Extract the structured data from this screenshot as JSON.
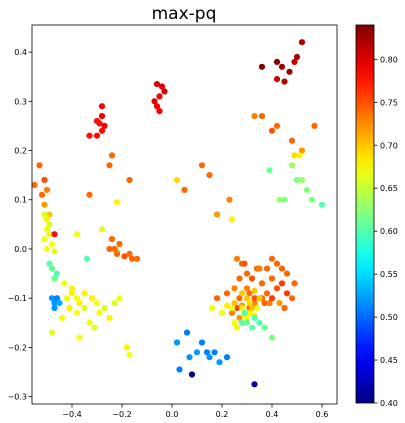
{
  "chart_data": {
    "type": "scatter",
    "title": "max-pq",
    "xlabel": "",
    "ylabel": "",
    "xlim": [
      -0.56,
      0.66
    ],
    "ylim": [
      -0.315,
      0.455
    ],
    "xticks": [
      "−0.4",
      "−0.2",
      "0.0",
      "0.2",
      "0.4",
      "0.6"
    ],
    "xtick_values": [
      -0.4,
      -0.2,
      0.0,
      0.2,
      0.4,
      0.6
    ],
    "yticks": [
      "−0.3",
      "−0.2",
      "−0.1",
      "0.0",
      "0.1",
      "0.2",
      "0.3",
      "0.4"
    ],
    "ytick_values": [
      -0.3,
      -0.2,
      -0.1,
      0.0,
      0.1,
      0.2,
      0.3,
      0.4
    ],
    "colorbar": {
      "colormap": "jet",
      "range": [
        0.4,
        0.84
      ],
      "ticks": [
        "0.40",
        "0.45",
        "0.50",
        "0.55",
        "0.60",
        "0.65",
        "0.70",
        "0.75",
        "0.80"
      ],
      "tick_values": [
        0.4,
        0.45,
        0.5,
        0.55,
        0.6,
        0.65,
        0.7,
        0.75,
        0.8
      ]
    },
    "grid": false,
    "points": [
      [
        0.44,
        0.37,
        0.83
      ],
      [
        0.42,
        0.38,
        0.84
      ],
      [
        0.47,
        0.36,
        0.83
      ],
      [
        0.5,
        0.39,
        0.82
      ],
      [
        0.52,
        0.42,
        0.82
      ],
      [
        0.49,
        0.38,
        0.81
      ],
      [
        0.45,
        0.34,
        0.82
      ],
      [
        0.42,
        0.345,
        0.81
      ],
      [
        0.36,
        0.37,
        0.84
      ],
      [
        -0.04,
        0.33,
        0.8
      ],
      [
        -0.05,
        0.31,
        0.79
      ],
      [
        -0.03,
        0.32,
        0.8
      ],
      [
        -0.06,
        0.29,
        0.79
      ],
      [
        -0.07,
        0.3,
        0.8
      ],
      [
        -0.05,
        0.28,
        0.79
      ],
      [
        -0.06,
        0.335,
        0.8
      ],
      [
        -0.28,
        0.29,
        0.79
      ],
      [
        -0.3,
        0.26,
        0.78
      ],
      [
        -0.28,
        0.27,
        0.79
      ],
      [
        -0.29,
        0.255,
        0.78
      ],
      [
        -0.27,
        0.25,
        0.79
      ],
      [
        -0.3,
        0.23,
        0.78
      ],
      [
        -0.33,
        0.23,
        0.78
      ],
      [
        -0.28,
        0.24,
        0.78
      ],
      [
        0.33,
        0.27,
        0.73
      ],
      [
        0.36,
        0.27,
        0.74
      ],
      [
        0.4,
        0.24,
        0.75
      ],
      [
        0.42,
        0.25,
        0.74
      ],
      [
        0.57,
        0.25,
        0.74
      ],
      [
        0.48,
        0.22,
        0.74
      ],
      [
        0.52,
        0.2,
        0.72
      ],
      [
        0.49,
        0.19,
        0.69
      ],
      [
        0.51,
        0.19,
        0.68
      ],
      [
        0.48,
        0.17,
        0.63
      ],
      [
        -0.24,
        0.19,
        0.74
      ],
      [
        -0.25,
        0.17,
        0.74
      ],
      [
        -0.17,
        0.14,
        0.74
      ],
      [
        -0.33,
        0.11,
        0.74
      ],
      [
        -0.22,
        0.095,
        0.68
      ],
      [
        0.12,
        0.17,
        0.74
      ],
      [
        0.15,
        0.15,
        0.74
      ],
      [
        0.05,
        0.12,
        0.74
      ],
      [
        0.02,
        0.14,
        0.69
      ],
      [
        0.23,
        0.1,
        0.73
      ],
      [
        0.18,
        0.07,
        0.72
      ],
      [
        0.24,
        0.06,
        0.68
      ],
      [
        0.39,
        0.16,
        0.61
      ],
      [
        0.45,
        0.1,
        0.62
      ],
      [
        0.43,
        0.1,
        0.63
      ],
      [
        0.5,
        0.14,
        0.62
      ],
      [
        0.52,
        0.14,
        0.63
      ],
      [
        0.54,
        0.12,
        0.62
      ],
      [
        0.56,
        0.1,
        0.62
      ],
      [
        0.6,
        0.09,
        0.6
      ],
      [
        -0.53,
        0.17,
        0.74
      ],
      [
        -0.55,
        0.13,
        0.74
      ],
      [
        -0.51,
        0.14,
        0.75
      ],
      [
        -0.5,
        0.12,
        0.73
      ],
      [
        -0.52,
        0.11,
        0.74
      ],
      [
        -0.51,
        0.09,
        0.72
      ],
      [
        -0.49,
        0.07,
        0.7
      ],
      [
        -0.5,
        0.06,
        0.68
      ],
      [
        -0.51,
        0.07,
        0.66
      ],
      [
        -0.49,
        0.05,
        0.66
      ],
      [
        -0.5,
        0.04,
        0.67
      ],
      [
        -0.51,
        0.02,
        0.67
      ],
      [
        -0.48,
        0.01,
        0.67
      ],
      [
        -0.5,
        0.0,
        0.67
      ],
      [
        -0.47,
        -0.005,
        0.66
      ],
      [
        -0.49,
        0.03,
        0.66
      ],
      [
        -0.47,
        0.03,
        0.78
      ],
      [
        -0.38,
        0.03,
        0.67
      ],
      [
        -0.28,
        0.04,
        0.66
      ],
      [
        -0.34,
        -0.02,
        0.6
      ],
      [
        -0.22,
        -0.005,
        0.62
      ],
      [
        -0.49,
        -0.03,
        0.6
      ],
      [
        -0.48,
        -0.04,
        0.61
      ],
      [
        -0.47,
        -0.06,
        0.61
      ],
      [
        -0.46,
        -0.05,
        0.6
      ],
      [
        -0.24,
        0.02,
        0.74
      ],
      [
        -0.25,
        0.0,
        0.74
      ],
      [
        -0.23,
        0.0,
        0.74
      ],
      [
        -0.22,
        -0.01,
        0.74
      ],
      [
        -0.21,
        0.01,
        0.74
      ],
      [
        -0.19,
        -0.015,
        0.75
      ],
      [
        -0.17,
        -0.01,
        0.74
      ],
      [
        -0.16,
        -0.02,
        0.74
      ],
      [
        -0.14,
        -0.02,
        0.74
      ],
      [
        -0.48,
        -0.1,
        0.52
      ],
      [
        -0.47,
        -0.11,
        0.52
      ],
      [
        -0.46,
        -0.1,
        0.51
      ],
      [
        -0.47,
        -0.12,
        0.52
      ],
      [
        -0.45,
        -0.11,
        0.53
      ],
      [
        -0.43,
        -0.07,
        0.67
      ],
      [
        -0.4,
        -0.09,
        0.68
      ],
      [
        -0.42,
        -0.1,
        0.67
      ],
      [
        -0.38,
        -0.1,
        0.67
      ],
      [
        -0.37,
        -0.11,
        0.68
      ],
      [
        -0.35,
        -0.12,
        0.66
      ],
      [
        -0.4,
        -0.08,
        0.68
      ],
      [
        -0.35,
        -0.09,
        0.68
      ],
      [
        -0.32,
        -0.1,
        0.68
      ],
      [
        -0.3,
        -0.11,
        0.67
      ],
      [
        -0.27,
        -0.12,
        0.66
      ],
      [
        -0.25,
        -0.14,
        0.68
      ],
      [
        -0.23,
        -0.11,
        0.66
      ],
      [
        -0.21,
        -0.1,
        0.67
      ],
      [
        -0.38,
        -0.13,
        0.67
      ],
      [
        -0.31,
        -0.16,
        0.66
      ],
      [
        -0.29,
        -0.13,
        0.67
      ],
      [
        -0.33,
        -0.15,
        0.67
      ],
      [
        -0.44,
        -0.14,
        0.67
      ],
      [
        -0.41,
        -0.12,
        0.68
      ],
      [
        -0.48,
        -0.17,
        0.66
      ],
      [
        -0.37,
        -0.18,
        0.67
      ],
      [
        -0.18,
        -0.2,
        0.68
      ],
      [
        -0.17,
        -0.215,
        0.67
      ],
      [
        0.26,
        -0.02,
        0.73
      ],
      [
        0.28,
        -0.03,
        0.74
      ],
      [
        0.3,
        -0.05,
        0.74
      ],
      [
        0.32,
        -0.06,
        0.75
      ],
      [
        0.34,
        -0.04,
        0.74
      ],
      [
        0.36,
        -0.07,
        0.74
      ],
      [
        0.38,
        -0.09,
        0.74
      ],
      [
        0.4,
        -0.06,
        0.74
      ],
      [
        0.42,
        -0.08,
        0.75
      ],
      [
        0.44,
        -0.07,
        0.76
      ],
      [
        0.46,
        -0.09,
        0.76
      ],
      [
        0.48,
        -0.1,
        0.74
      ],
      [
        0.3,
        -0.08,
        0.73
      ],
      [
        0.27,
        -0.06,
        0.74
      ],
      [
        0.25,
        -0.08,
        0.73
      ],
      [
        0.22,
        -0.09,
        0.74
      ],
      [
        0.33,
        -0.11,
        0.73
      ],
      [
        0.36,
        -0.1,
        0.74
      ],
      [
        0.39,
        -0.11,
        0.73
      ],
      [
        0.43,
        -0.11,
        0.72
      ],
      [
        0.45,
        -0.12,
        0.74
      ],
      [
        0.4,
        -0.02,
        0.74
      ],
      [
        0.38,
        -0.04,
        0.74
      ],
      [
        0.31,
        -0.09,
        0.74
      ],
      [
        0.35,
        -0.04,
        0.73
      ],
      [
        0.44,
        -0.04,
        0.74
      ],
      [
        0.29,
        -0.03,
        0.75
      ],
      [
        0.27,
        -0.1,
        0.74
      ],
      [
        0.24,
        -0.13,
        0.73
      ],
      [
        0.27,
        -0.14,
        0.72
      ],
      [
        0.26,
        -0.12,
        0.76
      ],
      [
        0.31,
        -0.12,
        0.74
      ],
      [
        0.18,
        -0.1,
        0.74
      ],
      [
        0.49,
        -0.07,
        0.74
      ],
      [
        0.28,
        -0.115,
        0.72
      ],
      [
        0.33,
        -0.1,
        0.75
      ],
      [
        0.46,
        -0.05,
        0.74
      ],
      [
        0.42,
        -0.03,
        0.74
      ],
      [
        0.37,
        -0.11,
        0.74
      ],
      [
        0.4,
        -0.1,
        0.76
      ],
      [
        0.22,
        -0.115,
        0.68
      ],
      [
        0.24,
        -0.12,
        0.67
      ],
      [
        0.28,
        -0.12,
        0.68
      ],
      [
        0.3,
        -0.14,
        0.68
      ],
      [
        0.2,
        -0.13,
        0.67
      ],
      [
        0.26,
        -0.16,
        0.68
      ],
      [
        0.31,
        -0.13,
        0.68
      ],
      [
        0.34,
        -0.12,
        0.67
      ],
      [
        0.16,
        -0.12,
        0.67
      ],
      [
        0.25,
        -0.15,
        0.67
      ],
      [
        0.33,
        -0.135,
        0.68
      ],
      [
        0.29,
        -0.135,
        0.68
      ],
      [
        0.28,
        -0.15,
        0.6
      ],
      [
        0.3,
        -0.15,
        0.61
      ],
      [
        0.33,
        -0.14,
        0.6
      ],
      [
        0.35,
        -0.15,
        0.6
      ],
      [
        0.37,
        -0.16,
        0.61
      ],
      [
        0.4,
        -0.18,
        0.62
      ],
      [
        0.32,
        -0.16,
        0.61
      ],
      [
        0.29,
        -0.13,
        0.6
      ],
      [
        0.25,
        -0.11,
        0.7
      ],
      [
        0.31,
        -0.11,
        0.69
      ],
      [
        0.3,
        -0.1,
        0.7
      ],
      [
        0.28,
        -0.09,
        0.7
      ],
      [
        0.35,
        -0.1,
        0.7
      ],
      [
        0.33,
        -0.085,
        0.7
      ],
      [
        0.32,
        -0.12,
        0.7
      ],
      [
        0.02,
        -0.19,
        0.52
      ],
      [
        0.1,
        -0.21,
        0.52
      ],
      [
        0.12,
        -0.19,
        0.51
      ],
      [
        0.14,
        -0.21,
        0.51
      ],
      [
        0.15,
        -0.22,
        0.52
      ],
      [
        0.17,
        -0.21,
        0.51
      ],
      [
        0.19,
        -0.23,
        0.52
      ],
      [
        0.22,
        -0.22,
        0.51
      ],
      [
        0.03,
        -0.245,
        0.51
      ],
      [
        0.07,
        -0.22,
        0.52
      ],
      [
        0.06,
        -0.17,
        0.51
      ],
      [
        0.08,
        -0.255,
        0.4
      ],
      [
        0.33,
        -0.275,
        0.41
      ]
    ]
  }
}
